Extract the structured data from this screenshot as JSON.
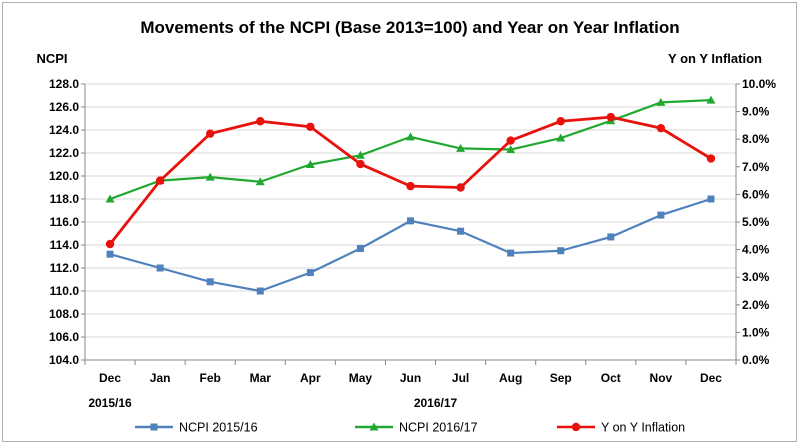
{
  "chart_data": {
    "type": "line",
    "title": "Movements of the NCPI (Base 2013=100) and Year on Year Inflation",
    "y_left_label": "NCPI",
    "y_right_label": "Y on Y Inflation",
    "categories": [
      "Dec",
      "Jan",
      "Feb",
      "Mar",
      "Apr",
      "May",
      "Jun",
      "Jul",
      "Aug",
      "Sep",
      "Oct",
      "Nov",
      "Dec"
    ],
    "year_labels": [
      "2015/16",
      "2016/17"
    ],
    "ylim_left": [
      104.0,
      128.0
    ],
    "ylim_right": [
      0.0,
      10.0
    ],
    "left_ticks": [
      "104.0",
      "106.0",
      "108.0",
      "110.0",
      "112.0",
      "114.0",
      "116.0",
      "118.0",
      "120.0",
      "122.0",
      "124.0",
      "126.0",
      "128.0"
    ],
    "right_ticks": [
      "0.0%",
      "1.0%",
      "2.0%",
      "3.0%",
      "4.0%",
      "5.0%",
      "6.0%",
      "7.0%",
      "8.0%",
      "9.0%",
      "10.0%"
    ],
    "grid": true,
    "legend_position": "bottom",
    "series": [
      {
        "name": "NCPI 2015/16",
        "axis": "left",
        "color": "#4f81bd",
        "marker": "square",
        "values": [
          113.2,
          112.0,
          110.8,
          110.0,
          111.6,
          113.7,
          116.1,
          115.2,
          113.3,
          113.5,
          114.7,
          116.6,
          118.0
        ]
      },
      {
        "name": "NCPI 2016/17",
        "axis": "left",
        "color": "#22a830",
        "marker": "triangle",
        "values": [
          118.0,
          119.6,
          119.9,
          119.5,
          121.0,
          121.8,
          123.4,
          122.4,
          122.3,
          123.3,
          124.8,
          126.4,
          126.6
        ]
      },
      {
        "name": "Y on Y Inflation",
        "axis": "right",
        "color": "#e8120c",
        "marker": "circle",
        "values": [
          4.2,
          6.5,
          8.2,
          8.65,
          8.45,
          7.1,
          6.3,
          6.25,
          7.95,
          8.65,
          8.8,
          8.4,
          7.3
        ]
      }
    ]
  }
}
